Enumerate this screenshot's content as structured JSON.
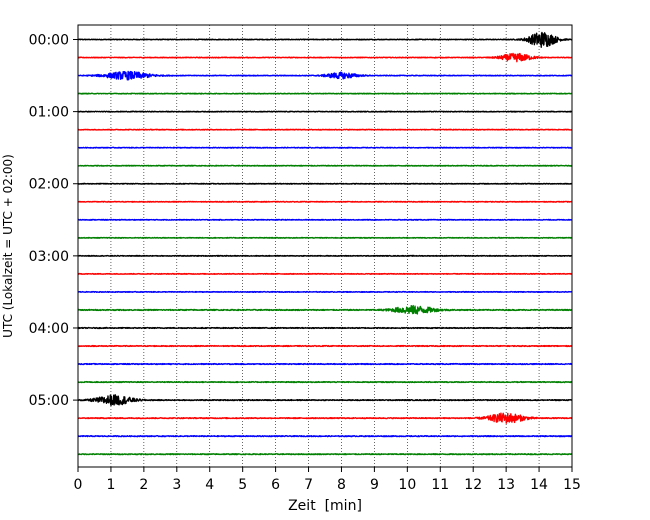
{
  "chart_data": {
    "type": "line",
    "title": "",
    "xlabel": "Zeit  [min]",
    "ylabel": "UTC (Lokalzeit = UTC + 02:00)",
    "xlim": [
      0,
      15
    ],
    "x_ticks": [
      "0",
      "1",
      "2",
      "3",
      "4",
      "5",
      "6",
      "7",
      "8",
      "9",
      "10",
      "11",
      "12",
      "13",
      "14",
      "15"
    ],
    "y_tick_labels": [
      "00:00",
      "01:00",
      "02:00",
      "03:00",
      "04:00",
      "05:00"
    ],
    "grid": "vertical dotted at each minute",
    "row_interval_minutes": 15,
    "color_cycle": [
      "#000000",
      "#ff0000",
      "#0000ff",
      "#008000"
    ],
    "rows": [
      {
        "start": "00:00",
        "color": "#000000",
        "amp": 0.35,
        "events": [
          {
            "t": 14.1,
            "amp": 8,
            "width": 0.6
          }
        ]
      },
      {
        "start": "00:15",
        "color": "#ff0000",
        "amp": 0.35,
        "events": [
          {
            "t": 13.3,
            "amp": 4,
            "width": 0.7
          }
        ]
      },
      {
        "start": "00:30",
        "color": "#0000ff",
        "amp": 0.35,
        "events": [
          {
            "t": 1.5,
            "amp": 4,
            "width": 1.0
          },
          {
            "t": 8.0,
            "amp": 3,
            "width": 0.7
          }
        ]
      },
      {
        "start": "00:45",
        "color": "#008000",
        "amp": 0.35,
        "events": []
      },
      {
        "start": "01:00",
        "color": "#000000",
        "amp": 0.35,
        "events": []
      },
      {
        "start": "01:15",
        "color": "#ff0000",
        "amp": 0.35,
        "events": []
      },
      {
        "start": "01:30",
        "color": "#0000ff",
        "amp": 0.35,
        "events": []
      },
      {
        "start": "01:45",
        "color": "#008000",
        "amp": 0.35,
        "events": []
      },
      {
        "start": "02:00",
        "color": "#000000",
        "amp": 0.35,
        "events": []
      },
      {
        "start": "02:15",
        "color": "#ff0000",
        "amp": 0.35,
        "events": []
      },
      {
        "start": "02:30",
        "color": "#0000ff",
        "amp": 0.35,
        "events": []
      },
      {
        "start": "02:45",
        "color": "#008000",
        "amp": 0.35,
        "events": []
      },
      {
        "start": "03:00",
        "color": "#000000",
        "amp": 0.35,
        "events": []
      },
      {
        "start": "03:15",
        "color": "#ff0000",
        "amp": 0.35,
        "events": []
      },
      {
        "start": "03:30",
        "color": "#0000ff",
        "amp": 0.35,
        "events": []
      },
      {
        "start": "03:45",
        "color": "#008000",
        "amp": 0.5,
        "events": [
          {
            "t": 10.2,
            "amp": 4,
            "width": 0.9
          }
        ]
      },
      {
        "start": "04:00",
        "color": "#000000",
        "amp": 0.45,
        "events": []
      },
      {
        "start": "04:15",
        "color": "#ff0000",
        "amp": 0.45,
        "events": []
      },
      {
        "start": "04:30",
        "color": "#0000ff",
        "amp": 0.45,
        "events": []
      },
      {
        "start": "04:45",
        "color": "#008000",
        "amp": 0.45,
        "events": []
      },
      {
        "start": "05:00",
        "color": "#000000",
        "amp": 0.45,
        "events": [
          {
            "t": 1.1,
            "amp": 5,
            "width": 0.8
          }
        ]
      },
      {
        "start": "05:15",
        "color": "#ff0000",
        "amp": 0.45,
        "events": [
          {
            "t": 13.0,
            "amp": 5,
            "width": 0.8
          }
        ]
      },
      {
        "start": "05:30",
        "color": "#0000ff",
        "amp": 0.45,
        "events": []
      },
      {
        "start": "05:45",
        "color": "#008000",
        "amp": 0.45,
        "events": []
      }
    ]
  }
}
